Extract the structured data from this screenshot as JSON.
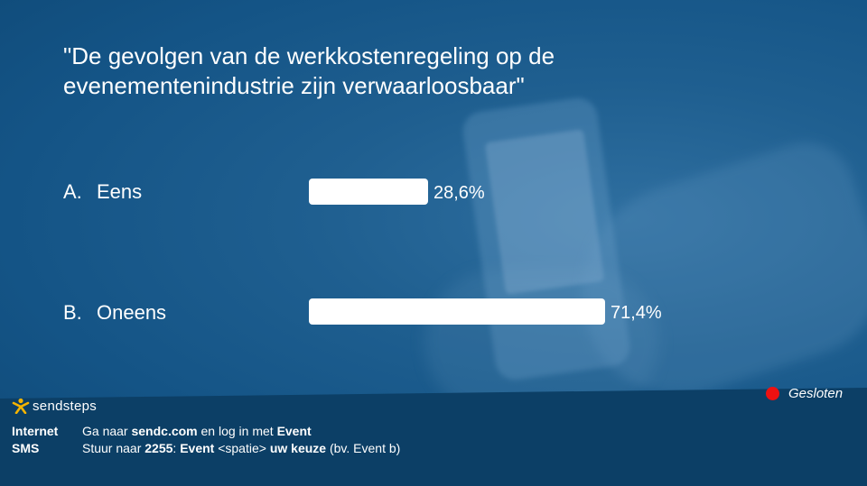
{
  "question": {
    "title": "\"De gevolgen van de werkkostenregeling op de evenementenindustrie zijn verwaarloosbaar\""
  },
  "answers": [
    {
      "letter": "A.",
      "label": "Eens",
      "percent_text": "28,6%",
      "percent": 28.6
    },
    {
      "letter": "B.",
      "label": "Oneens",
      "percent_text": "71,4%",
      "percent": 71.4
    }
  ],
  "branding": {
    "logo_text": "sendsteps"
  },
  "status": {
    "label": "Gesloten",
    "color": "#ee1111"
  },
  "instructions": {
    "internet": {
      "key": "Internet",
      "part1": "Ga naar ",
      "url": "sendc.com",
      "part2": " en log in met ",
      "event": "Event"
    },
    "sms": {
      "key": "SMS",
      "part1": "Stuur naar ",
      "number": "2255",
      "part2": ": ",
      "event": "Event",
      "part3": " <spatie> ",
      "choice": "uw keuze",
      "part4": " (bv. Event b)"
    }
  },
  "colors": {
    "background": "#145486",
    "footer": "#0c3f66",
    "bar": "#ffffff",
    "text": "#ffffff"
  }
}
